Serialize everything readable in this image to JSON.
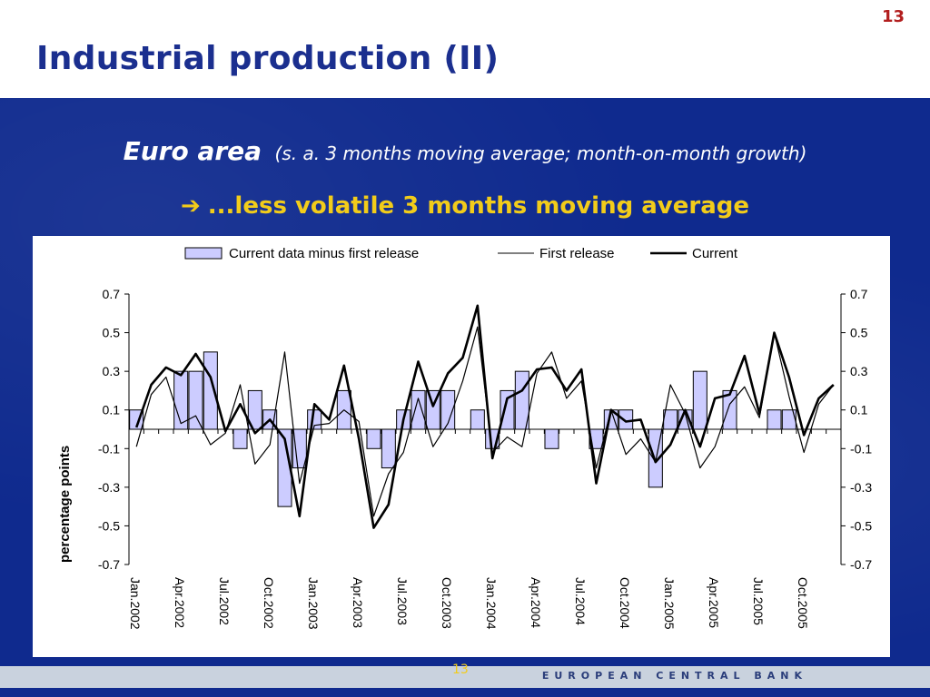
{
  "slide": {
    "number": "13",
    "title": "Industrial production (II)",
    "subtitle_main": "Euro area",
    "subtitle_note": "(s. a. 3 months moving average; month-on-month growth)",
    "headline_arrow": "➔",
    "headline": "...less volatile 3 months moving average",
    "bank_name": "EUROPEAN CENTRAL BANK"
  },
  "colors": {
    "title": "#1b2f8f",
    "panel": "#0f2a8e",
    "headline": "#f2cc1a",
    "bar_fill": "#ccccff",
    "line": "#000000"
  },
  "chart_data": {
    "type": "bar+line",
    "ylabel": "percentage points",
    "ylim": [
      -0.7,
      0.7
    ],
    "yticks": [
      "0.7",
      "0.5",
      "0.3",
      "0.1",
      "-0.1",
      "-0.3",
      "-0.5",
      "-0.7"
    ],
    "ytick_values": [
      0.7,
      0.5,
      0.3,
      0.1,
      -0.1,
      -0.3,
      -0.5,
      -0.7
    ],
    "x_labels": [
      "Jan.2002",
      "Apr.2002",
      "Jul.2002",
      "Oct.2002",
      "Jan.2003",
      "Apr.2003",
      "Jul.2003",
      "Oct.2003",
      "Jan.2004",
      "Apr.2004",
      "Jul.2004",
      "Oct.2004",
      "Jan.2005",
      "Apr.2005",
      "Jul.2005",
      "Oct.2005"
    ],
    "legend_position": "top",
    "legend": {
      "bars": "Current data minus first release",
      "first": "First release",
      "current": "Current"
    },
    "series": [
      {
        "name": "Current data minus first release",
        "kind": "bar",
        "values": [
          0.1,
          0.0,
          0.0,
          0.3,
          0.3,
          0.4,
          0.0,
          -0.1,
          0.2,
          0.1,
          -0.4,
          -0.2,
          0.1,
          0.0,
          0.2,
          0.0,
          -0.1,
          -0.2,
          0.1,
          0.2,
          0.2,
          0.2,
          0.0,
          0.1,
          -0.1,
          0.2,
          0.3,
          0.0,
          -0.1,
          0.0,
          0.0,
          -0.1,
          0.1,
          0.1,
          0.0,
          -0.3,
          0.1,
          0.1,
          0.3,
          0.0,
          0.2,
          0.0,
          0.0,
          0.1,
          0.1,
          0.0,
          0.0,
          0.0
        ]
      },
      {
        "name": "First release",
        "kind": "line-thin",
        "values": [
          -0.09,
          0.18,
          0.27,
          0.03,
          0.07,
          -0.08,
          -0.02,
          0.23,
          -0.18,
          -0.08,
          0.4,
          -0.28,
          0.02,
          0.03,
          0.1,
          0.04,
          -0.45,
          -0.23,
          -0.12,
          0.16,
          -0.09,
          0.03,
          0.25,
          0.53,
          -0.12,
          -0.04,
          -0.09,
          0.29,
          0.4,
          0.16,
          0.25,
          -0.2,
          0.1,
          -0.13,
          -0.05,
          -0.17,
          0.23,
          0.08,
          -0.2,
          -0.09,
          0.13,
          0.22,
          0.06,
          0.5,
          0.17,
          -0.12,
          0.13,
          0.23
        ]
      },
      {
        "name": "Current",
        "kind": "line-thick",
        "values": [
          0.01,
          0.23,
          0.32,
          0.28,
          0.39,
          0.27,
          -0.01,
          0.13,
          -0.02,
          0.05,
          -0.05,
          -0.45,
          0.13,
          0.05,
          0.33,
          -0.05,
          -0.51,
          -0.39,
          0.05,
          0.35,
          0.12,
          0.29,
          0.37,
          0.64,
          -0.15,
          0.16,
          0.2,
          0.31,
          0.32,
          0.2,
          0.31,
          -0.28,
          0.1,
          0.04,
          0.05,
          -0.17,
          -0.08,
          0.1,
          -0.09,
          0.16,
          0.18,
          0.38,
          0.08,
          0.5,
          0.27,
          -0.03,
          0.16,
          0.23
        ]
      }
    ]
  }
}
